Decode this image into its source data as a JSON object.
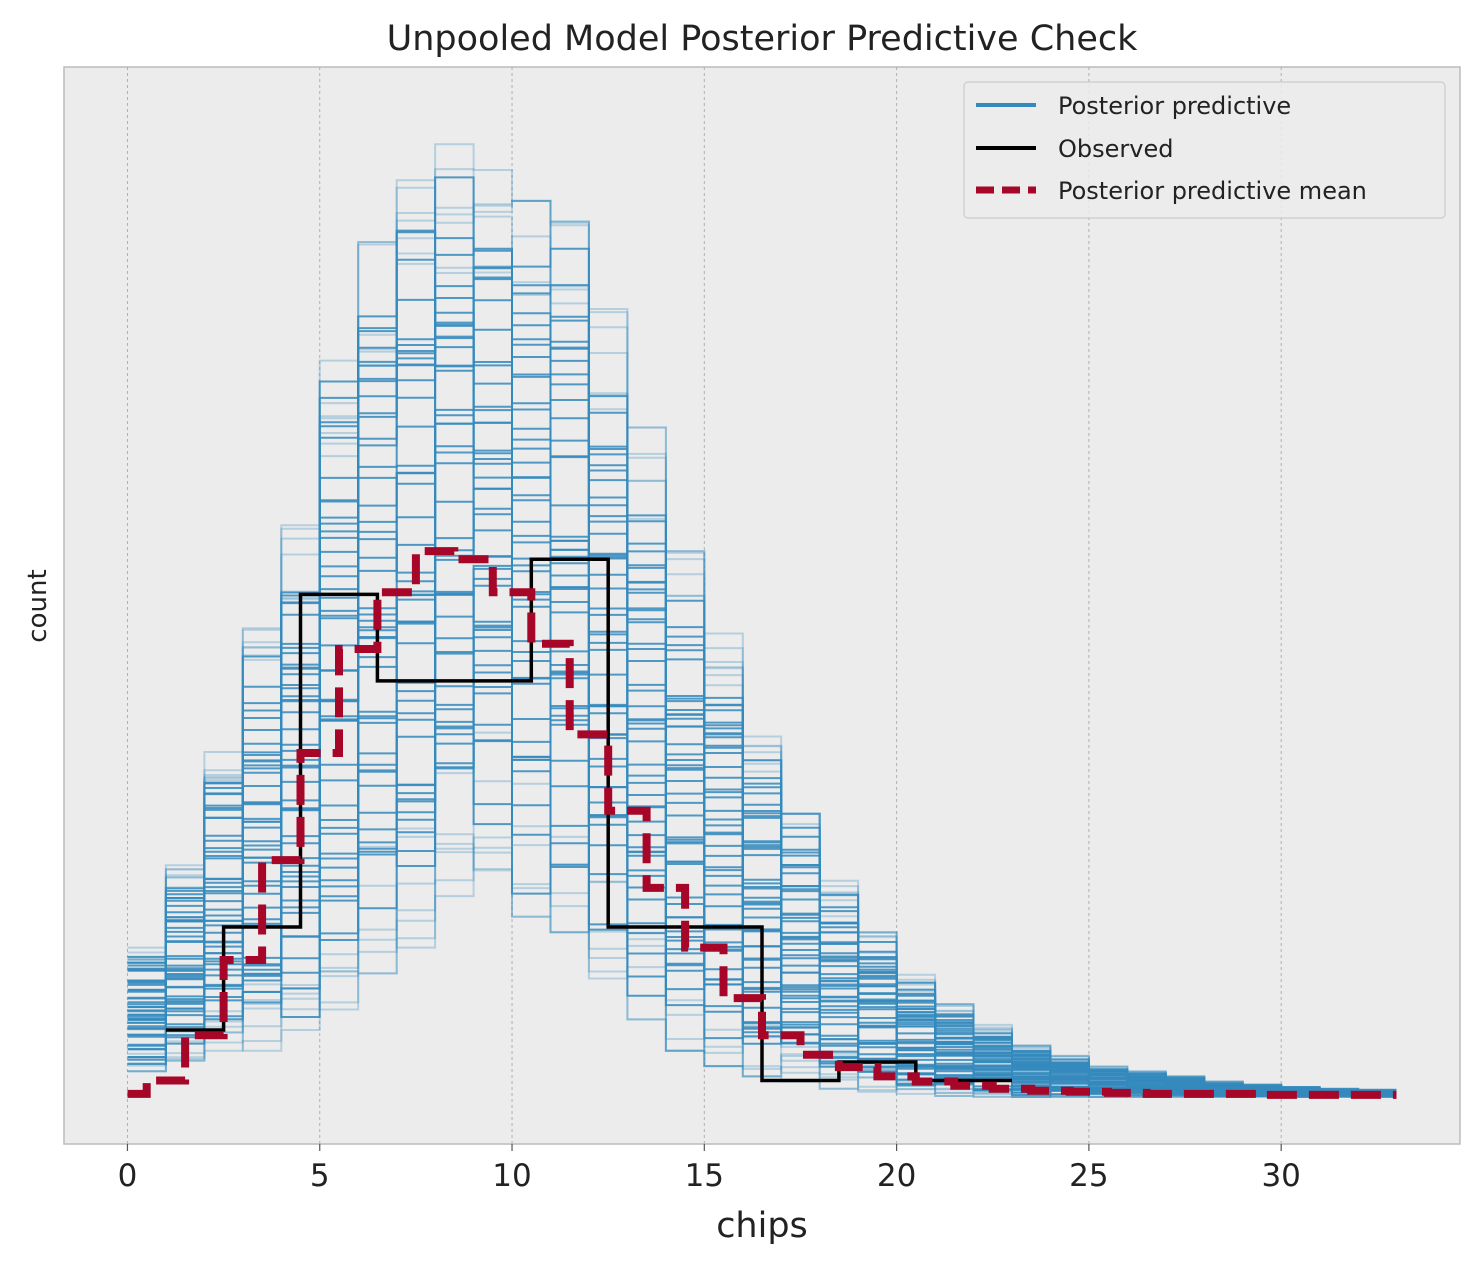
{
  "chart_data": {
    "type": "line",
    "title": "Unpooled Model Posterior Predictive Check",
    "xlabel": "chips",
    "ylabel": "count",
    "xlim": [
      -1.65,
      34.65
    ],
    "ylim": [
      0,
      100
    ],
    "xticks": [
      0,
      5,
      10,
      15,
      20,
      25,
      30
    ],
    "grid": "vertical",
    "legend_position": "top-right",
    "series": [
      {
        "name": "Posterior predictive",
        "color": "#348abd",
        "style": "steps",
        "ensemble": true,
        "bin_edges": [
          0,
          1,
          2,
          3,
          4,
          5,
          6,
          7,
          8,
          9,
          10,
          11,
          12,
          13,
          14,
          15,
          16,
          17,
          18,
          19,
          20,
          21,
          22,
          23,
          24,
          25,
          26,
          27,
          28,
          29,
          30,
          31,
          32,
          33
        ],
        "bin_ranges": [
          [
            2.5,
            14.5
          ],
          [
            3.5,
            22.5
          ],
          [
            4.5,
            33.5
          ],
          [
            4.5,
            45.5
          ],
          [
            6.5,
            55.5
          ],
          [
            8.5,
            71.5
          ],
          [
            12,
            83
          ],
          [
            14.5,
            89
          ],
          [
            19.5,
            92.5
          ],
          [
            22,
            90
          ],
          [
            17.5,
            87
          ],
          [
            16,
            85
          ],
          [
            11.5,
            76.5
          ],
          [
            7.5,
            65
          ],
          [
            4.5,
            53
          ],
          [
            3,
            45
          ],
          [
            2,
            35
          ],
          [
            1.5,
            27.5
          ],
          [
            0.8,
            21
          ],
          [
            0.5,
            16
          ],
          [
            0.3,
            12
          ],
          [
            0.1,
            9
          ],
          [
            0,
            7
          ],
          [
            0,
            5
          ],
          [
            0,
            4
          ],
          [
            0,
            3
          ],
          [
            0,
            2.5
          ],
          [
            0,
            2
          ],
          [
            0,
            1.5
          ],
          [
            0,
            1.2
          ],
          [
            0,
            1
          ],
          [
            0,
            0.8
          ],
          [
            0,
            0.7
          ]
        ]
      },
      {
        "name": "Observed",
        "color": "#000000",
        "style": "steps",
        "x": [
          1,
          2,
          3,
          4,
          5,
          6,
          7,
          8,
          9,
          10,
          11,
          12,
          13,
          14,
          15,
          16,
          17,
          18,
          19,
          20,
          21,
          22,
          23
        ],
        "y": [
          6.5,
          6.5,
          16.5,
          16.5,
          48.8,
          48.8,
          40.4,
          40.4,
          40.4,
          40.4,
          52.2,
          52.2,
          16.5,
          16.5,
          16.5,
          16.5,
          1.6,
          1.6,
          3.4,
          3.4,
          1.6,
          1.6,
          1.6
        ]
      },
      {
        "name": "Posterior predictive mean",
        "color": "#a60628",
        "style": "dashed-steps",
        "x": [
          0,
          1,
          2,
          3,
          4,
          5,
          6,
          7,
          8,
          9,
          10,
          11,
          12,
          13,
          14,
          15,
          16,
          17,
          18,
          19,
          20,
          21,
          22,
          23,
          24,
          25,
          26,
          27,
          28,
          29,
          30,
          31,
          32,
          33
        ],
        "y": [
          0.3,
          1.6,
          6.0,
          13.3,
          23.0,
          33.4,
          43.5,
          49.0,
          53.0,
          52.2,
          49.0,
          44.0,
          35.2,
          27.8,
          20.3,
          14.5,
          9.6,
          6.0,
          4.1,
          2.9,
          2.0,
          1.5,
          1.1,
          0.8,
          0.6,
          0.5,
          0.4,
          0.3,
          0.3,
          0.3,
          0.2,
          0.2,
          0.2,
          0.2
        ]
      }
    ]
  }
}
